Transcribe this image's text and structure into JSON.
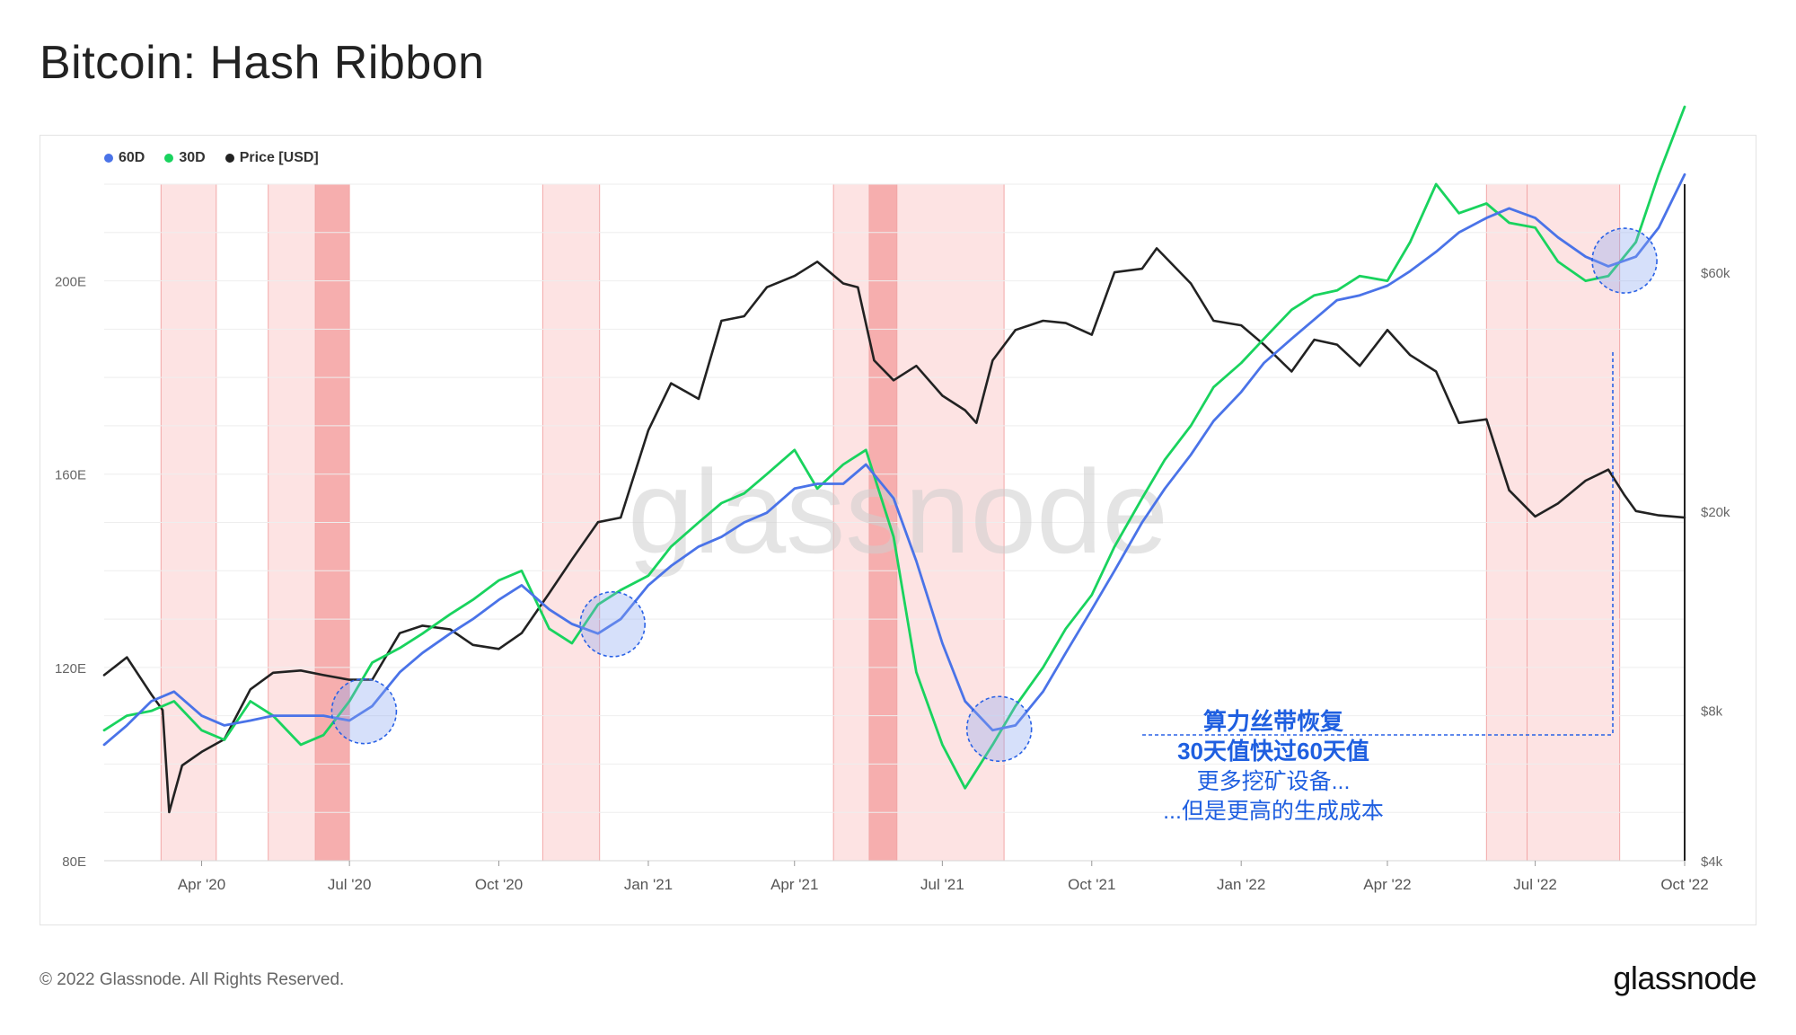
{
  "page": {
    "title": "Bitcoin: Hash Ribbon",
    "copyright": "© 2022 Glassnode. All Rights Reserved.",
    "logo": "glassnode",
    "watermark": "glassnode"
  },
  "legend": [
    {
      "label": "60D",
      "color": "#4a73e8"
    },
    {
      "label": "30D",
      "color": "#19d35e"
    },
    {
      "label": "Price [USD]",
      "color": "#222222"
    }
  ],
  "annotation": {
    "line1": "算力丝带恢复",
    "line2": "30天值快过60天值",
    "line3": "更多挖矿设备...",
    "line4": "...但是更高的生成成本",
    "color": "#1f5fe0"
  },
  "chart_data": {
    "type": "line",
    "x_range": [
      "2020-02-01",
      "2022-10-01"
    ],
    "x_ticks": [
      {
        "date": "2020-04-01",
        "label": "Apr '20"
      },
      {
        "date": "2020-07-01",
        "label": "Jul '20"
      },
      {
        "date": "2020-10-01",
        "label": "Oct '20"
      },
      {
        "date": "2021-01-01",
        "label": "Jan '21"
      },
      {
        "date": "2021-04-01",
        "label": "Apr '21"
      },
      {
        "date": "2021-07-01",
        "label": "Jul '21"
      },
      {
        "date": "2021-10-01",
        "label": "Oct '21"
      },
      {
        "date": "2022-01-01",
        "label": "Jan '22"
      },
      {
        "date": "2022-04-01",
        "label": "Apr '22"
      },
      {
        "date": "2022-07-01",
        "label": "Jul '22"
      },
      {
        "date": "2022-10-01",
        "label": "Oct '22"
      }
    ],
    "y_left": {
      "unit": "E (hash rate)",
      "ylim": [
        80,
        220
      ],
      "ticks": [
        {
          "v": 80,
          "label": "80E"
        },
        {
          "v": 120,
          "label": "120E"
        },
        {
          "v": 160,
          "label": "160E"
        },
        {
          "v": 200,
          "label": "200E"
        }
      ]
    },
    "y_right": {
      "scale": "log",
      "ylim": [
        4000,
        90000
      ],
      "ticks": [
        {
          "v": 4000,
          "label": "$4k"
        },
        {
          "v": 8000,
          "label": "$8k"
        },
        {
          "v": 20000,
          "label": "$20k"
        },
        {
          "v": 60000,
          "label": "$60k"
        }
      ]
    },
    "capitulation_bands": [
      {
        "start": "2020-03-07",
        "end": "2020-04-10",
        "strong": false
      },
      {
        "start": "2020-05-12",
        "end": "2020-06-10",
        "strong": false
      },
      {
        "start": "2020-06-10",
        "end": "2020-07-01",
        "strong": true
      },
      {
        "start": "2020-10-28",
        "end": "2020-12-02",
        "strong": false
      },
      {
        "start": "2021-04-25",
        "end": "2021-05-17",
        "strong": false
      },
      {
        "start": "2021-05-17",
        "end": "2021-06-03",
        "strong": true
      },
      {
        "start": "2021-06-03",
        "end": "2021-08-08",
        "strong": false
      },
      {
        "start": "2022-06-01",
        "end": "2022-06-26",
        "strong": false
      },
      {
        "start": "2022-06-26",
        "end": "2022-08-22",
        "strong": false
      }
    ],
    "highlight_circles": [
      "2020-07-10",
      "2020-12-10",
      "2021-08-05",
      "2022-08-25"
    ],
    "series": [
      {
        "name": "60D",
        "axis": "left",
        "color": "#4a73e8",
        "points": [
          [
            "2020-02-01",
            104
          ],
          [
            "2020-02-15",
            108
          ],
          [
            "2020-03-01",
            113
          ],
          [
            "2020-03-15",
            115
          ],
          [
            "2020-04-01",
            110
          ],
          [
            "2020-04-15",
            108
          ],
          [
            "2020-05-01",
            109
          ],
          [
            "2020-05-15",
            110
          ],
          [
            "2020-06-01",
            110
          ],
          [
            "2020-06-15",
            110
          ],
          [
            "2020-07-01",
            109
          ],
          [
            "2020-07-15",
            112
          ],
          [
            "2020-08-01",
            119
          ],
          [
            "2020-08-15",
            123
          ],
          [
            "2020-09-01",
            127
          ],
          [
            "2020-09-15",
            130
          ],
          [
            "2020-10-01",
            134
          ],
          [
            "2020-10-15",
            137
          ],
          [
            "2020-11-01",
            132
          ],
          [
            "2020-11-15",
            129
          ],
          [
            "2020-12-01",
            127
          ],
          [
            "2020-12-15",
            130
          ],
          [
            "2021-01-01",
            137
          ],
          [
            "2021-01-15",
            141
          ],
          [
            "2021-02-01",
            145
          ],
          [
            "2021-02-15",
            147
          ],
          [
            "2021-03-01",
            150
          ],
          [
            "2021-03-15",
            152
          ],
          [
            "2021-04-01",
            157
          ],
          [
            "2021-04-15",
            158
          ],
          [
            "2021-05-01",
            158
          ],
          [
            "2021-05-15",
            162
          ],
          [
            "2021-06-01",
            155
          ],
          [
            "2021-06-15",
            142
          ],
          [
            "2021-07-01",
            125
          ],
          [
            "2021-07-15",
            113
          ],
          [
            "2021-08-01",
            107
          ],
          [
            "2021-08-15",
            108
          ],
          [
            "2021-09-01",
            115
          ],
          [
            "2021-09-15",
            123
          ],
          [
            "2021-10-01",
            132
          ],
          [
            "2021-10-15",
            140
          ],
          [
            "2021-11-01",
            150
          ],
          [
            "2021-11-15",
            157
          ],
          [
            "2021-12-01",
            164
          ],
          [
            "2021-12-15",
            171
          ],
          [
            "2022-01-01",
            177
          ],
          [
            "2022-01-15",
            183
          ],
          [
            "2022-02-01",
            188
          ],
          [
            "2022-02-15",
            192
          ],
          [
            "2022-03-01",
            196
          ],
          [
            "2022-03-15",
            197
          ],
          [
            "2022-04-01",
            199
          ],
          [
            "2022-04-15",
            202
          ],
          [
            "2022-05-01",
            206
          ],
          [
            "2022-05-15",
            210
          ],
          [
            "2022-06-01",
            213
          ],
          [
            "2022-06-15",
            215
          ],
          [
            "2022-07-01",
            213
          ],
          [
            "2022-07-15",
            209
          ],
          [
            "2022-08-01",
            205
          ],
          [
            "2022-08-15",
            203
          ],
          [
            "2022-09-01",
            205
          ],
          [
            "2022-09-15",
            211
          ],
          [
            "2022-10-01",
            222
          ]
        ]
      },
      {
        "name": "30D",
        "axis": "left",
        "color": "#19d35e",
        "points": [
          [
            "2020-02-01",
            107
          ],
          [
            "2020-02-15",
            110
          ],
          [
            "2020-03-01",
            111
          ],
          [
            "2020-03-15",
            113
          ],
          [
            "2020-04-01",
            107
          ],
          [
            "2020-04-15",
            105
          ],
          [
            "2020-05-01",
            113
          ],
          [
            "2020-05-15",
            110
          ],
          [
            "2020-06-01",
            104
          ],
          [
            "2020-06-15",
            106
          ],
          [
            "2020-07-01",
            113
          ],
          [
            "2020-07-15",
            121
          ],
          [
            "2020-08-01",
            124
          ],
          [
            "2020-08-15",
            127
          ],
          [
            "2020-09-01",
            131
          ],
          [
            "2020-09-15",
            134
          ],
          [
            "2020-10-01",
            138
          ],
          [
            "2020-10-15",
            140
          ],
          [
            "2020-11-01",
            128
          ],
          [
            "2020-11-15",
            125
          ],
          [
            "2020-12-01",
            133
          ],
          [
            "2020-12-15",
            136
          ],
          [
            "2021-01-01",
            139
          ],
          [
            "2021-01-15",
            145
          ],
          [
            "2021-02-01",
            150
          ],
          [
            "2021-02-15",
            154
          ],
          [
            "2021-03-01",
            156
          ],
          [
            "2021-03-15",
            160
          ],
          [
            "2021-04-01",
            165
          ],
          [
            "2021-04-15",
            157
          ],
          [
            "2021-05-01",
            162
          ],
          [
            "2021-05-15",
            165
          ],
          [
            "2021-06-01",
            147
          ],
          [
            "2021-06-15",
            119
          ],
          [
            "2021-07-01",
            104
          ],
          [
            "2021-07-15",
            95
          ],
          [
            "2021-08-01",
            104
          ],
          [
            "2021-08-15",
            112
          ],
          [
            "2021-09-01",
            120
          ],
          [
            "2021-09-15",
            128
          ],
          [
            "2021-10-01",
            135
          ],
          [
            "2021-10-15",
            145
          ],
          [
            "2021-11-01",
            155
          ],
          [
            "2021-11-15",
            163
          ],
          [
            "2021-12-01",
            170
          ],
          [
            "2021-12-15",
            178
          ],
          [
            "2022-01-01",
            183
          ],
          [
            "2022-01-15",
            188
          ],
          [
            "2022-02-01",
            194
          ],
          [
            "2022-02-15",
            197
          ],
          [
            "2022-03-01",
            198
          ],
          [
            "2022-03-15",
            201
          ],
          [
            "2022-04-01",
            200
          ],
          [
            "2022-04-15",
            208
          ],
          [
            "2022-05-01",
            220
          ],
          [
            "2022-05-15",
            214
          ],
          [
            "2022-06-01",
            216
          ],
          [
            "2022-06-15",
            212
          ],
          [
            "2022-07-01",
            211
          ],
          [
            "2022-07-15",
            204
          ],
          [
            "2022-08-01",
            200
          ],
          [
            "2022-08-15",
            201
          ],
          [
            "2022-09-01",
            208
          ],
          [
            "2022-09-15",
            222
          ],
          [
            "2022-10-01",
            236
          ]
        ]
      },
      {
        "name": "Price [USD]",
        "axis": "right",
        "color": "#222222",
        "points": [
          [
            "2020-02-01",
            9400
          ],
          [
            "2020-02-15",
            10200
          ],
          [
            "2020-03-01",
            8600
          ],
          [
            "2020-03-08",
            8000
          ],
          [
            "2020-03-12",
            5000
          ],
          [
            "2020-03-20",
            6200
          ],
          [
            "2020-04-01",
            6600
          ],
          [
            "2020-04-15",
            7000
          ],
          [
            "2020-05-01",
            8800
          ],
          [
            "2020-05-15",
            9500
          ],
          [
            "2020-06-01",
            9600
          ],
          [
            "2020-06-15",
            9400
          ],
          [
            "2020-07-01",
            9200
          ],
          [
            "2020-07-15",
            9200
          ],
          [
            "2020-08-01",
            11400
          ],
          [
            "2020-08-15",
            11800
          ],
          [
            "2020-09-01",
            11600
          ],
          [
            "2020-09-15",
            10800
          ],
          [
            "2020-10-01",
            10600
          ],
          [
            "2020-10-15",
            11400
          ],
          [
            "2020-11-01",
            13700
          ],
          [
            "2020-11-15",
            16000
          ],
          [
            "2020-12-01",
            19000
          ],
          [
            "2020-12-15",
            19400
          ],
          [
            "2021-01-01",
            29000
          ],
          [
            "2021-01-15",
            36000
          ],
          [
            "2021-02-01",
            33500
          ],
          [
            "2021-02-15",
            48000
          ],
          [
            "2021-03-01",
            49000
          ],
          [
            "2021-03-15",
            56000
          ],
          [
            "2021-04-01",
            59000
          ],
          [
            "2021-04-15",
            63000
          ],
          [
            "2021-05-01",
            57000
          ],
          [
            "2021-05-10",
            56000
          ],
          [
            "2021-05-20",
            40000
          ],
          [
            "2021-06-01",
            36500
          ],
          [
            "2021-06-15",
            39000
          ],
          [
            "2021-07-01",
            34000
          ],
          [
            "2021-07-15",
            31800
          ],
          [
            "2021-07-22",
            30000
          ],
          [
            "2021-08-01",
            40000
          ],
          [
            "2021-08-15",
            46000
          ],
          [
            "2021-09-01",
            48000
          ],
          [
            "2021-09-15",
            47500
          ],
          [
            "2021-10-01",
            45000
          ],
          [
            "2021-10-15",
            60000
          ],
          [
            "2021-11-01",
            61000
          ],
          [
            "2021-11-10",
            67000
          ],
          [
            "2021-12-01",
            57000
          ],
          [
            "2021-12-15",
            48000
          ],
          [
            "2022-01-01",
            47000
          ],
          [
            "2022-01-15",
            43000
          ],
          [
            "2022-02-01",
            38000
          ],
          [
            "2022-02-15",
            44000
          ],
          [
            "2022-03-01",
            43000
          ],
          [
            "2022-03-15",
            39000
          ],
          [
            "2022-04-01",
            46000
          ],
          [
            "2022-04-15",
            41000
          ],
          [
            "2022-05-01",
            38000
          ],
          [
            "2022-05-15",
            30000
          ],
          [
            "2022-06-01",
            30500
          ],
          [
            "2022-06-15",
            22000
          ],
          [
            "2022-07-01",
            19500
          ],
          [
            "2022-07-15",
            20700
          ],
          [
            "2022-08-01",
            23000
          ],
          [
            "2022-08-15",
            24200
          ],
          [
            "2022-08-25",
            21500
          ],
          [
            "2022-09-01",
            20000
          ],
          [
            "2022-09-15",
            19600
          ],
          [
            "2022-10-01",
            19400
          ]
        ]
      }
    ]
  }
}
